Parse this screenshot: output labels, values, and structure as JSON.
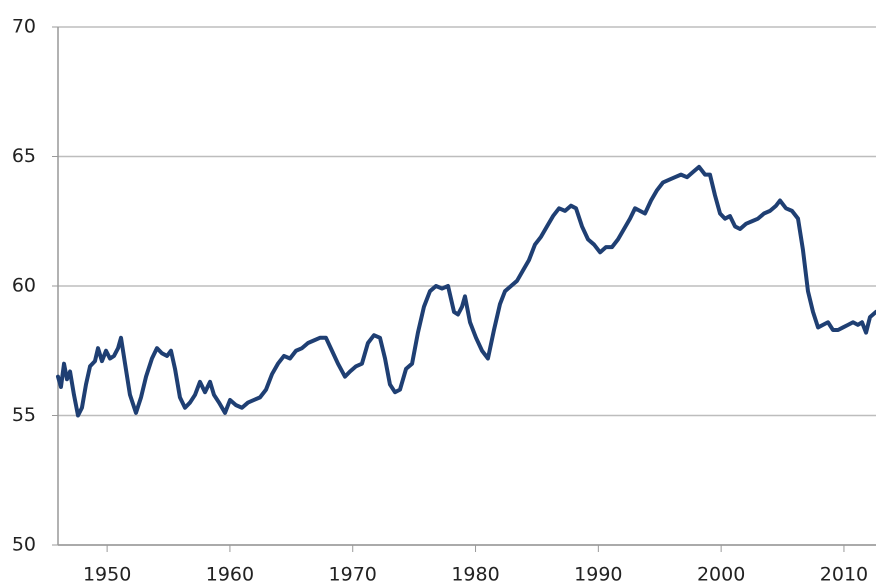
{
  "chart_data": {
    "type": "line",
    "x": [
      1946.0,
      1946.24,
      1946.49,
      1946.73,
      1946.98,
      1947.3,
      1947.63,
      1947.95,
      1948.28,
      1948.61,
      1949.01,
      1949.26,
      1949.58,
      1949.91,
      1950.23,
      1950.56,
      1950.89,
      1951.13,
      1951.46,
      1951.86,
      1952.35,
      1952.76,
      1953.17,
      1953.65,
      1954.06,
      1954.47,
      1954.88,
      1955.2,
      1955.53,
      1955.93,
      1956.34,
      1956.75,
      1957.16,
      1957.56,
      1957.97,
      1958.38,
      1958.7,
      1959.11,
      1959.6,
      1960.01,
      1960.49,
      1960.98,
      1961.47,
      1961.96,
      1962.45,
      1962.94,
      1963.43,
      1963.91,
      1964.4,
      1964.89,
      1965.38,
      1965.87,
      1966.36,
      1966.85,
      1967.33,
      1967.82,
      1968.31,
      1968.8,
      1969.37,
      1969.78,
      1970.27,
      1970.75,
      1971.24,
      1971.73,
      1972.22,
      1972.63,
      1973.03,
      1973.44,
      1973.85,
      1974.34,
      1974.83,
      1975.31,
      1975.8,
      1976.29,
      1976.78,
      1977.27,
      1977.76,
      1978.25,
      1978.57,
      1978.9,
      1979.14,
      1979.55,
      1980.04,
      1980.53,
      1981.01,
      1981.5,
      1981.99,
      1982.4,
      1982.89,
      1983.38,
      1983.86,
      1984.35,
      1984.84,
      1985.33,
      1985.82,
      1986.31,
      1986.8,
      1987.29,
      1987.77,
      1988.18,
      1988.67,
      1989.16,
      1989.65,
      1990.14,
      1990.62,
      1991.11,
      1991.6,
      1992.09,
      1992.58,
      1992.99,
      1993.39,
      1993.8,
      1994.29,
      1994.78,
      1995.27,
      1995.75,
      1996.24,
      1996.73,
      1997.22,
      1997.71,
      1998.2,
      1998.69,
      1999.09,
      1999.5,
      1999.91,
      2000.31,
      2000.72,
      2001.13,
      2001.54,
      2002.02,
      2002.51,
      2003.0,
      2003.49,
      2003.98,
      2004.47,
      2004.79,
      2005.28,
      2005.77,
      2006.26,
      2006.66,
      2007.07,
      2007.48,
      2007.89,
      2008.29,
      2008.7,
      2009.11,
      2009.52,
      2009.92,
      2010.33,
      2010.74,
      2011.14,
      2011.47,
      2011.8,
      2012.12,
      2012.61
    ],
    "series": [
      {
        "color": "#1f3f73",
        "values": [
          56.5,
          56.1,
          57.0,
          56.4,
          56.7,
          55.8,
          55.0,
          55.3,
          56.2,
          56.9,
          57.1,
          57.6,
          57.1,
          57.5,
          57.2,
          57.3,
          57.6,
          58.0,
          57.0,
          55.8,
          55.1,
          55.7,
          56.5,
          57.2,
          57.6,
          57.4,
          57.3,
          57.5,
          56.8,
          55.7,
          55.3,
          55.5,
          55.8,
          56.3,
          55.9,
          56.3,
          55.8,
          55.5,
          55.1,
          55.6,
          55.4,
          55.3,
          55.5,
          55.6,
          55.7,
          56.0,
          56.6,
          57.0,
          57.3,
          57.2,
          57.5,
          57.6,
          57.8,
          57.9,
          58.0,
          58.0,
          57.5,
          57.0,
          56.5,
          56.7,
          56.9,
          57.0,
          57.8,
          58.1,
          58.0,
          57.2,
          56.2,
          55.9,
          56.0,
          56.8,
          57.0,
          58.2,
          59.2,
          59.8,
          60.0,
          59.9,
          60.0,
          59.0,
          58.9,
          59.2,
          59.6,
          58.6,
          58.0,
          57.5,
          57.2,
          58.3,
          59.3,
          59.8,
          60.0,
          60.2,
          60.6,
          61.0,
          61.6,
          61.9,
          62.3,
          62.7,
          63.0,
          62.9,
          63.1,
          63.0,
          62.3,
          61.8,
          61.6,
          61.3,
          61.5,
          61.5,
          61.8,
          62.2,
          62.6,
          63.0,
          62.9,
          62.8,
          63.3,
          63.7,
          64.0,
          64.1,
          64.2,
          64.3,
          64.2,
          64.4,
          64.6,
          64.3,
          64.3,
          63.5,
          62.8,
          62.6,
          62.7,
          62.3,
          62.2,
          62.4,
          62.5,
          62.6,
          62.8,
          62.9,
          63.1,
          63.3,
          63.0,
          62.9,
          62.6,
          61.4,
          59.8,
          59.0,
          58.4,
          58.5,
          58.6,
          58.3,
          58.3,
          58.4,
          58.5,
          58.6,
          58.5,
          58.6,
          58.2,
          58.8,
          59.0
        ]
      }
    ],
    "xlim": [
      1946,
      2012.61
    ],
    "xticks": [
      1950,
      1960,
      1970,
      1980,
      1990,
      2000,
      2010
    ],
    "ylim": [
      50,
      70
    ],
    "yticks": [
      50,
      55,
      60,
      65,
      70
    ],
    "grid": true
  }
}
